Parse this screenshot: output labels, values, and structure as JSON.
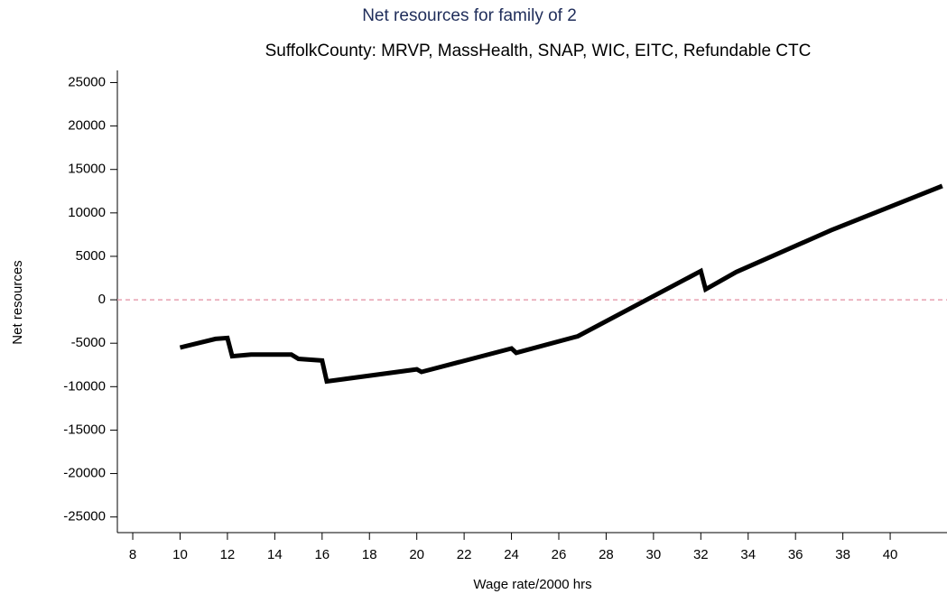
{
  "chart_data": {
    "type": "line",
    "title": "Net resources for family of 2",
    "subtitle": "SuffolkCounty: MRVP, MassHealth, SNAP, WIC, EITC, Refundable CTC",
    "x_label": "Wage rate/2000 hrs",
    "y_label": "Net resources",
    "x": [
      10,
      11.5,
      12,
      12.2,
      13,
      14.7,
      15,
      16,
      16.2,
      20,
      20.2,
      24,
      24.2,
      26.8,
      32,
      32.2,
      33.5,
      37.5,
      42.2
    ],
    "values": [
      -5500,
      -4500,
      -4400,
      -6500,
      -6300,
      -6300,
      -6800,
      -7000,
      -9400,
      -8000,
      -8300,
      -5600,
      -6100,
      -4200,
      3300,
      1200,
      3200,
      8000,
      13100
    ],
    "color": "#000000",
    "xlim": [
      7.35,
      42.4
    ],
    "ylim": [
      -26800,
      26400
    ],
    "xticks": [
      8,
      10,
      12,
      14,
      16,
      18,
      20,
      22,
      24,
      26,
      28,
      30,
      32,
      34,
      36,
      38,
      40
    ],
    "yticks": [
      -25000,
      -20000,
      -15000,
      -10000,
      -5000,
      0,
      5000,
      10000,
      15000,
      20000,
      25000
    ],
    "reference_line": {
      "y": 0,
      "color": "#e8a0b0"
    },
    "title_color": "#1f2d5a"
  }
}
